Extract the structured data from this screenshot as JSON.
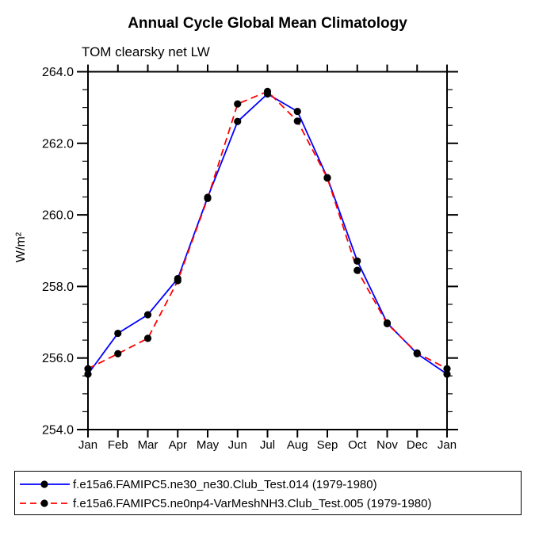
{
  "header": {
    "title": "Annual Cycle Global Mean Climatology",
    "subtitle": "TOM clearsky net LW"
  },
  "chart_data": {
    "type": "line",
    "title": "Annual Cycle Global Mean Climatology",
    "subtitle": "TOM clearsky net LW",
    "xlabel": "",
    "ylabel": "W/m²",
    "categories": [
      "Jan",
      "Feb",
      "Mar",
      "Apr",
      "May",
      "Jun",
      "Jul",
      "Aug",
      "Sep",
      "Oct",
      "Nov",
      "Dec",
      "Jan"
    ],
    "ylim": [
      254.0,
      264.0
    ],
    "ytick_major_step": 2.0,
    "ytick_minor_step": 0.5,
    "ytick_labels": [
      "254.0",
      "256.0",
      "258.0",
      "260.0",
      "262.0",
      "264.0"
    ],
    "grid": false,
    "legend_position": "bottom",
    "series": [
      {
        "name": "f.e15a6.FAMIPC5.ne30_ne30.Club_Test.014 (1979-1980)",
        "color": "#0000ff",
        "line_style": "solid",
        "marker": "filled-circle",
        "marker_color": "#000000",
        "values": [
          255.55,
          256.69,
          257.21,
          258.22,
          260.49,
          262.61,
          263.38,
          262.89,
          261.04,
          258.71,
          256.98,
          256.12,
          255.55
        ]
      },
      {
        "name": "f.e15a6.FAMIPC5.ne0np4-VarMeshNH3.Club_Test.005 (1979-1980)",
        "color": "#ff0000",
        "line_style": "dashed",
        "marker": "filled-circle",
        "marker_color": "#000000",
        "values": [
          255.7,
          256.12,
          256.55,
          258.16,
          260.46,
          263.1,
          263.45,
          262.62,
          261.03,
          258.45,
          256.96,
          256.14,
          255.7
        ]
      }
    ]
  },
  "colors": {
    "axis": "#000000",
    "text": "#000000",
    "background": "#ffffff",
    "series_blue": "#0000ff",
    "series_red": "#ff0000",
    "marker": "#000000"
  }
}
